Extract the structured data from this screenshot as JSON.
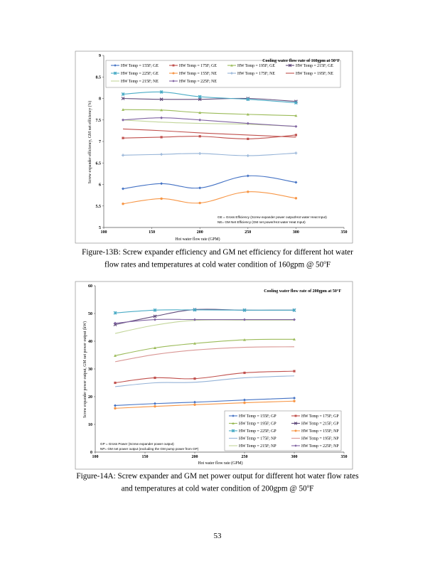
{
  "page_number": "53",
  "figures": [
    {
      "caption_lines": [
        "Figure-13B: Screw expander efficiency and GM net efficiency for different hot water",
        "flow rates and temperatures at cold water condition of 160gpm @ 50"
      ],
      "caption_deg": "o",
      "caption_end": "F"
    },
    {
      "caption_lines": [
        "Figure-14A: Screw expander and GM net power output for different hot water flow rates",
        "and temperatures at cold water condition of 200gpm @ 50"
      ],
      "caption_deg": "o",
      "caption_end": "F"
    }
  ],
  "chart_data": [
    {
      "type": "line",
      "title": "Cooling water flow rate of 160gpm at 50°F",
      "xlabel": "Hot water flow rate (GPM)",
      "ylabel": "Screw expander efficiency, GM net efficiency (%)",
      "xlim": [
        100,
        350
      ],
      "ylim": [
        5,
        9
      ],
      "xticks": [
        100,
        150,
        200,
        250,
        300,
        350
      ],
      "yticks": [
        5,
        5.5,
        6,
        6.5,
        7,
        7.5,
        8,
        8.5,
        9
      ],
      "legend_position": "top",
      "note_lines": [
        "GE = Gross Efficiency (Screw expander power output/Hot water Heat Input)",
        "NE= GM Net Efficiency (GM net power/Hot water Heat Input)"
      ],
      "x": [
        120,
        160,
        200,
        250,
        300
      ],
      "series": [
        {
          "name": "HW Temp = 155F; GE",
          "color": "#4472c4",
          "marker": "diamond",
          "values": [
            5.9,
            6.02,
            5.92,
            6.2,
            6.05
          ]
        },
        {
          "name": "HW Temp = 175F; GE",
          "color": "#c0504d",
          "marker": "square",
          "values": [
            7.08,
            7.1,
            7.12,
            7.06,
            7.15
          ]
        },
        {
          "name": "HW Temp = 195F; GE",
          "color": "#9bbb59",
          "marker": "triangle",
          "values": [
            7.74,
            7.73,
            7.67,
            7.63,
            7.6
          ]
        },
        {
          "name": "HW Temp = 215F; GE",
          "color": "#604a7b",
          "marker": "x",
          "values": [
            8.0,
            7.98,
            7.98,
            8.0,
            7.93
          ]
        },
        {
          "name": "HW Temp = 225F; GE",
          "color": "#4bacc6",
          "marker": "star",
          "values": [
            8.1,
            8.15,
            8.04,
            7.98,
            7.9
          ]
        },
        {
          "name": "HW Temp = 155F; NE",
          "color": "#f79646",
          "marker": "circle",
          "values": [
            5.55,
            5.67,
            5.57,
            5.83,
            5.68
          ]
        },
        {
          "name": "HW Temp = 175F; NE",
          "color": "#95b3d7",
          "marker": "plus",
          "values": [
            6.68,
            6.7,
            6.72,
            6.67,
            6.73
          ]
        },
        {
          "name": "HW Temp = 195F; NE",
          "color": "#c0504d",
          "marker": "none",
          "values": [
            7.29,
            7.25,
            7.2,
            7.15,
            7.1
          ]
        },
        {
          "name": "HW Temp = 215F; NE",
          "color": "#c3d69b",
          "marker": "none",
          "values": [
            7.5,
            7.45,
            7.42,
            7.4,
            7.35
          ]
        },
        {
          "name": "HW Temp = 225F; NE",
          "color": "#8064a2",
          "marker": "diamond",
          "values": [
            7.5,
            7.55,
            7.5,
            7.42,
            7.35
          ]
        }
      ]
    },
    {
      "type": "line",
      "title": "Cooling water flow rate of 200gpm at 50°F",
      "xlabel": "Hot water flow rate (GPM)",
      "ylabel": "Screw expander power output, GM net power output (kW)",
      "xlim": [
        100,
        350
      ],
      "ylim": [
        0,
        60
      ],
      "xticks": [
        100,
        150,
        200,
        250,
        300,
        350
      ],
      "yticks": [
        0,
        10,
        20,
        30,
        40,
        50,
        60
      ],
      "legend_position": "bottom-right",
      "note_lines": [
        "GP = Gross Power (Screw expander power output)",
        "NP= GM net power output (excluding the GM pump power from GP)"
      ],
      "x": [
        120,
        160,
        200,
        250,
        300
      ],
      "series": [
        {
          "name": "HW Temp = 155F; GP",
          "color": "#4472c4",
          "marker": "diamond",
          "values": [
            16.8,
            17.5,
            18.0,
            18.8,
            19.5
          ]
        },
        {
          "name": "HW Temp = 175F; GP",
          "color": "#c0504d",
          "marker": "square",
          "values": [
            25.0,
            26.8,
            26.5,
            28.6,
            29.2
          ]
        },
        {
          "name": "HW Temp = 195F; GP",
          "color": "#9bbb59",
          "marker": "triangle",
          "values": [
            34.8,
            37.6,
            39.2,
            40.5,
            40.7
          ]
        },
        {
          "name": "HW Temp = 215F; GP",
          "color": "#604a7b",
          "marker": "x",
          "values": [
            46.0,
            49.0,
            51.4,
            51.2,
            51.2
          ]
        },
        {
          "name": "HW Temp = 225F; GP",
          "color": "#4bacc6",
          "marker": "star",
          "values": [
            50.2,
            51.2,
            51.3,
            51.2,
            51.2
          ]
        },
        {
          "name": "HW Temp = 155F; NP",
          "color": "#f79646",
          "marker": "circle",
          "values": [
            15.8,
            16.5,
            17.1,
            17.8,
            18.4
          ]
        },
        {
          "name": "HW Temp = 175F; NP",
          "color": "#95b3d7",
          "marker": "none",
          "values": [
            23.6,
            25.0,
            25.2,
            26.8,
            27.5
          ]
        },
        {
          "name": "HW Temp = 195F; NP",
          "color": "#d99694",
          "marker": "none",
          "values": [
            32.6,
            35.2,
            36.8,
            37.8,
            38.0
          ]
        },
        {
          "name": "HW Temp = 215F; NP",
          "color": "#c3d69b",
          "marker": "none",
          "values": [
            42.8,
            45.8,
            47.5,
            47.6,
            47.6
          ]
        },
        {
          "name": "HW Temp = 225F; NP",
          "color": "#8064a2",
          "marker": "diamond",
          "values": [
            46.5,
            47.8,
            47.8,
            47.8,
            47.8
          ]
        }
      ]
    }
  ]
}
